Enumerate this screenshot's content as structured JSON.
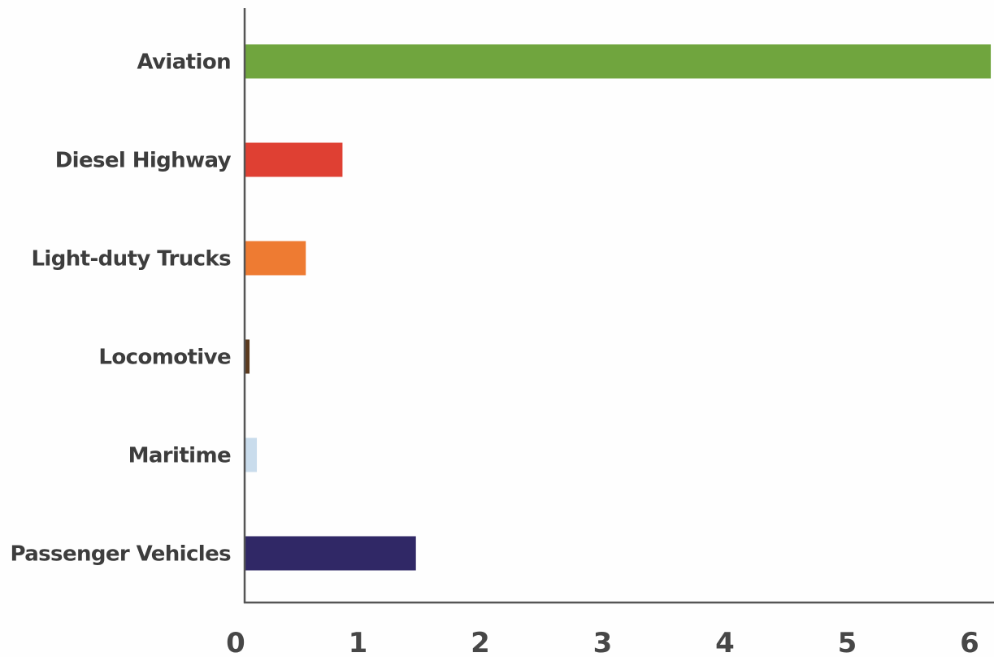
{
  "chart_data": {
    "type": "bar",
    "orientation": "horizontal",
    "title": "",
    "xlabel": "",
    "ylabel": "",
    "categories": [
      "Aviation",
      "Diesel Highway",
      "Light-duty Trucks",
      "Locomotive",
      "Maritime",
      "Passenger Vehicles"
    ],
    "values": [
      6.1,
      0.8,
      0.5,
      0.04,
      0.1,
      1.4
    ],
    "colors": [
      "#70a53e",
      "#df4033",
      "#ee7b32",
      "#5b3a1e",
      "#c9dcec",
      "#302866"
    ],
    "xlim": [
      0,
      6.1
    ],
    "xticks": [
      "0",
      "1",
      "2",
      "3",
      "4",
      "5",
      "6"
    ],
    "grid": false,
    "legend": "none"
  }
}
